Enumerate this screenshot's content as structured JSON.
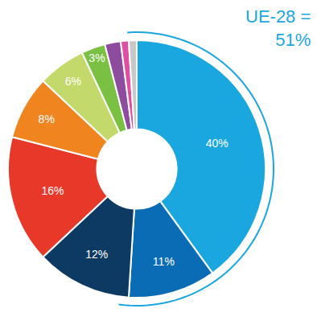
{
  "chart_data": {
    "type": "pie",
    "values": [
      40,
      11,
      12,
      16,
      8,
      6,
      3,
      2,
      1,
      1
    ],
    "value_labels": [
      "40%",
      "11%",
      "12%",
      "16%",
      "8%",
      "6%",
      "3%",
      null,
      null,
      null
    ],
    "colors": [
      "#1aa7e0",
      "#0a6cb5",
      "#0d3a63",
      "#e8382a",
      "#f0841f",
      "#c3d96b",
      "#7ac143",
      "#8e4c9e",
      "#e04e9f",
      "#c8c8c8"
    ],
    "data_labels": true,
    "annotation": [
      "UE-28 =",
      "51%"
    ]
  }
}
